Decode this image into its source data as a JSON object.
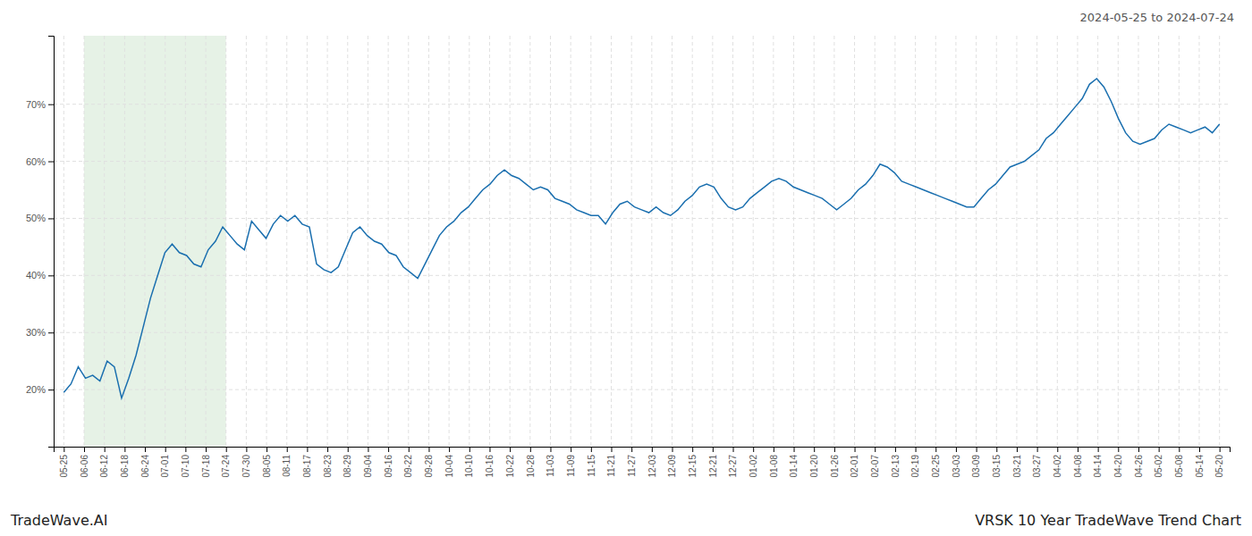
{
  "chart_data": {
    "type": "line",
    "title": "VRSK 10 Year TradeWave Trend Chart",
    "subtitle": "2024-05-25 to 2024-07-24",
    "annotations": [
      "TradeWave.AI"
    ],
    "color": "#1a6faf",
    "grid": true,
    "xlim": [
      -0.5,
      57.5
    ],
    "xticks": [
      {
        "value": 0,
        "label": "05-25"
      },
      {
        "value": 1,
        "label": "06-06"
      },
      {
        "value": 2,
        "label": "06-12"
      },
      {
        "value": 3,
        "label": "06-18"
      },
      {
        "value": 4,
        "label": "06-24"
      },
      {
        "value": 5,
        "label": "07-01"
      },
      {
        "value": 6,
        "label": "07-10"
      },
      {
        "value": 7,
        "label": "07-18"
      },
      {
        "value": 8,
        "label": "07-24"
      },
      {
        "value": 9,
        "label": "07-30"
      },
      {
        "value": 10,
        "label": "08-05"
      },
      {
        "value": 11,
        "label": "08-11"
      },
      {
        "value": 12,
        "label": "08-17"
      },
      {
        "value": 13,
        "label": "08-23"
      },
      {
        "value": 14,
        "label": "08-29"
      },
      {
        "value": 15,
        "label": "09-04"
      },
      {
        "value": 16,
        "label": "09-16"
      },
      {
        "value": 17,
        "label": "09-22"
      },
      {
        "value": 18,
        "label": "09-28"
      },
      {
        "value": 19,
        "label": "10-04"
      },
      {
        "value": 20,
        "label": "10-10"
      },
      {
        "value": 21,
        "label": "10-16"
      },
      {
        "value": 22,
        "label": "10-22"
      },
      {
        "value": 23,
        "label": "10-28"
      },
      {
        "value": 24,
        "label": "11-03"
      },
      {
        "value": 25,
        "label": "11-09"
      },
      {
        "value": 26,
        "label": "11-15"
      },
      {
        "value": 27,
        "label": "11-21"
      },
      {
        "value": 28,
        "label": "11-27"
      },
      {
        "value": 29,
        "label": "12-03"
      },
      {
        "value": 30,
        "label": "12-09"
      },
      {
        "value": 31,
        "label": "12-15"
      },
      {
        "value": 32,
        "label": "12-21"
      },
      {
        "value": 33,
        "label": "12-27"
      },
      {
        "value": 34,
        "label": "01-02"
      },
      {
        "value": 35,
        "label": "01-08"
      },
      {
        "value": 36,
        "label": "01-14"
      },
      {
        "value": 37,
        "label": "01-20"
      },
      {
        "value": 38,
        "label": "01-26"
      },
      {
        "value": 39,
        "label": "02-01"
      },
      {
        "value": 40,
        "label": "02-07"
      },
      {
        "value": 41,
        "label": "02-13"
      },
      {
        "value": 42,
        "label": "02-19"
      },
      {
        "value": 43,
        "label": "02-25"
      },
      {
        "value": 44,
        "label": "03-03"
      },
      {
        "value": 45,
        "label": "03-09"
      },
      {
        "value": 46,
        "label": "03-15"
      },
      {
        "value": 47,
        "label": "03-21"
      },
      {
        "value": 48,
        "label": "03-27"
      },
      {
        "value": 49,
        "label": "04-02"
      },
      {
        "value": 50,
        "label": "04-08"
      },
      {
        "value": 51,
        "label": "04-14"
      },
      {
        "value": 52,
        "label": "04-20"
      },
      {
        "value": 53,
        "label": "04-26"
      },
      {
        "value": 54,
        "label": "05-02"
      },
      {
        "value": 55,
        "label": "05-08"
      },
      {
        "value": 56,
        "label": "05-14"
      },
      {
        "value": 57,
        "label": "05-20"
      }
    ],
    "ylim": [
      10,
      82
    ],
    "yticks": [
      {
        "value": 20,
        "label": "20%"
      },
      {
        "value": 30,
        "label": "30%"
      },
      {
        "value": 40,
        "label": "40%"
      },
      {
        "value": 50,
        "label": "50%"
      },
      {
        "value": 60,
        "label": "60%"
      },
      {
        "value": 70,
        "label": "70%"
      }
    ],
    "highlight": {
      "x_start": 1,
      "x_end": 8,
      "color": "#d6ead6"
    },
    "x": [
      0,
      0.35625,
      0.7125,
      1.06875,
      1.425,
      1.78125,
      2.1375,
      2.49375,
      2.85,
      3.20625,
      3.5625,
      3.91875,
      4.275,
      4.63125,
      4.9875,
      5.34375,
      5.7,
      6.05625,
      6.4125,
      6.76875,
      7.125,
      7.48125,
      7.8375,
      8.19375,
      8.55,
      8.90625,
      9.2625,
      9.61875,
      9.975,
      10.33125,
      10.6875,
      11.04375,
      11.4,
      11.75625,
      12.1125,
      12.46875,
      12.825,
      13.18125,
      13.5375,
      13.89375,
      14.25,
      14.60625,
      14.9625,
      15.31875,
      15.675,
      16.03125,
      16.3875,
      16.74375,
      17.1,
      17.45625,
      17.8125,
      18.16875,
      18.525,
      18.88125,
      19.2375,
      19.59375,
      19.95,
      20.30625,
      20.6625,
      21.01875,
      21.375,
      21.73125,
      22.0875,
      22.44375,
      22.8,
      23.15625,
      23.5125,
      23.86875,
      24.225,
      24.58125,
      24.9375,
      25.29375,
      25.65,
      26.00625,
      26.3625,
      26.71875,
      27.075,
      27.43125,
      27.7875,
      28.14375,
      28.5,
      28.85625,
      29.2125,
      29.56875,
      29.925,
      30.28125,
      30.6375,
      30.99375,
      31.35,
      31.70625,
      32.0625,
      32.41875,
      32.775,
      33.13125,
      33.4875,
      33.84375,
      34.2,
      34.55625,
      34.9125,
      35.26875,
      35.625,
      35.98125,
      36.3375,
      36.69375,
      37.05,
      37.40625,
      37.7625,
      38.11875,
      38.475,
      38.83125,
      39.1875,
      39.54375,
      39.9,
      40.25625,
      40.6125,
      40.96875,
      41.325,
      41.68125,
      42.0375,
      42.39375,
      42.75,
      43.10625,
      43.4625,
      43.81875,
      44.175,
      44.53125,
      44.8875,
      45.24375,
      45.6,
      45.95625,
      46.3125,
      46.66875,
      47.025,
      47.38125,
      47.7375,
      48.09375,
      48.45,
      48.80625,
      49.1625,
      49.51875,
      49.875,
      50.23125,
      50.5875,
      50.94375,
      51.3,
      51.65625,
      52.0125,
      52.36875,
      52.725,
      53.08125,
      53.4375,
      53.79375,
      54.15,
      54.50625,
      54.8625,
      55.21875,
      55.575,
      55.93125,
      56.2875,
      56.64375,
      57
    ],
    "values": [
      19.5,
      21.0,
      24.0,
      22.0,
      22.5,
      21.5,
      25.0,
      24.0,
      18.5,
      22.0,
      26.0,
      31.0,
      36.0,
      40.0,
      44.0,
      45.5,
      44.0,
      43.5,
      42.0,
      41.5,
      44.5,
      46.0,
      48.5,
      47.0,
      45.5,
      44.5,
      49.5,
      48.0,
      46.5,
      49.0,
      50.5,
      49.5,
      50.5,
      49.0,
      48.5,
      42.0,
      41.0,
      40.5,
      41.5,
      44.5,
      47.5,
      48.5,
      47.0,
      46.0,
      45.5,
      44.0,
      43.5,
      41.5,
      40.5,
      39.5,
      42.0,
      44.5,
      47.0,
      48.5,
      49.5,
      51.0,
      52.0,
      53.5,
      55.0,
      56.0,
      57.5,
      58.5,
      57.5,
      57.0,
      56.0,
      55.0,
      55.5,
      55.0,
      53.5,
      53.0,
      52.5,
      51.5,
      51.0,
      50.5,
      50.5,
      49.0,
      51.0,
      52.5,
      53.0,
      52.0,
      51.5,
      51.0,
      52.0,
      51.0,
      50.5,
      51.5,
      53.0,
      54.0,
      55.5,
      56.0,
      55.5,
      53.5,
      52.0,
      51.5,
      52.0,
      53.5,
      54.5,
      55.5,
      56.5,
      57.0,
      56.5,
      55.5,
      55.0,
      54.5,
      54.0,
      53.5,
      52.5,
      51.5,
      52.5,
      53.5,
      55.0,
      56.0,
      57.5,
      59.5,
      59.0,
      58.0,
      56.5,
      56.0,
      55.5,
      55.0,
      54.5,
      54.0,
      53.5,
      53.0,
      52.5,
      52.0,
      52.0,
      53.5,
      55.0,
      56.0,
      57.5,
      59.0,
      59.5,
      60.0,
      61.0,
      62.0,
      64.0,
      65.0,
      66.5,
      68.0,
      69.5,
      71.0,
      73.5,
      74.5,
      73.0,
      70.5,
      67.5,
      65.0,
      63.5,
      63.0,
      63.5,
      64.0,
      65.5,
      66.5,
      66.0,
      65.5,
      65.0,
      65.5,
      66.0,
      65.0,
      66.5
    ]
  }
}
